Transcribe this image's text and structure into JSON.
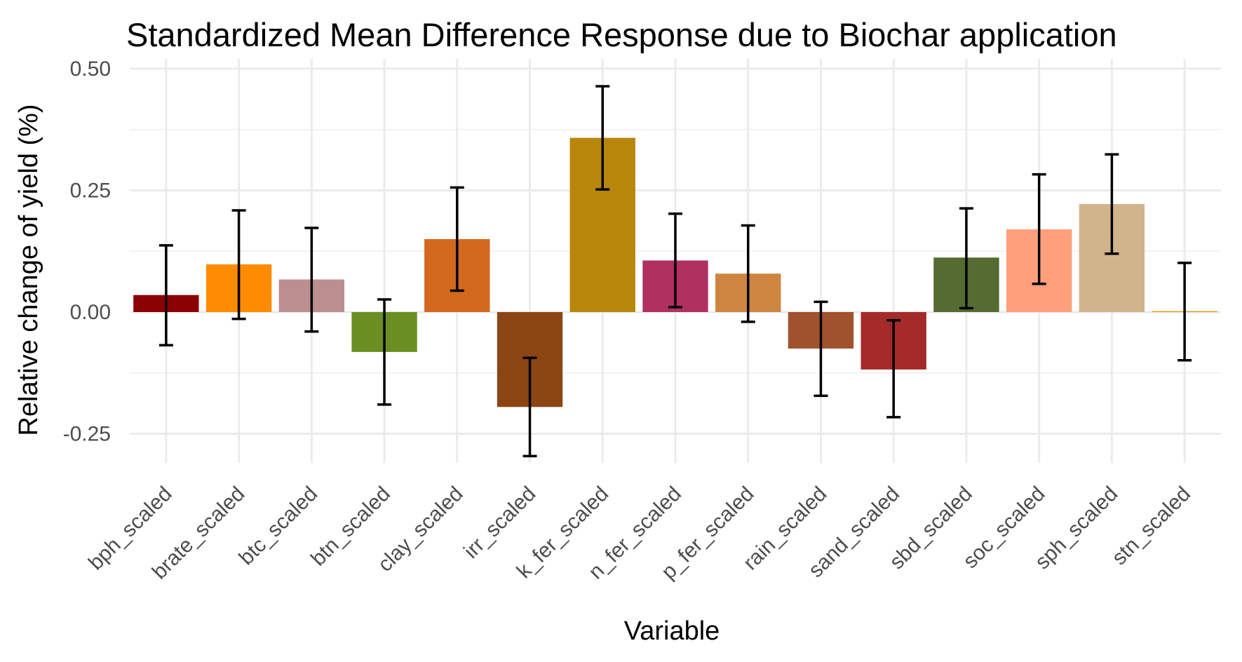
{
  "chart_data": {
    "type": "bar",
    "title": "Standardized Mean Difference Response due to Biochar application",
    "xlabel": "Variable",
    "ylabel": "Relative change of yield (%)",
    "ylim": [
      -0.31,
      0.52
    ],
    "yticks": [
      -0.25,
      0.0,
      0.25,
      0.5
    ],
    "ytick_labels": [
      "-0.25",
      "0.00",
      "0.25",
      "0.50"
    ],
    "grid": true,
    "legend": "none",
    "categories": [
      "bph_scaled",
      "brate_scaled",
      "btc_scaled",
      "btn_scaled",
      "clay_scaled",
      "irr_scaled",
      "k_fer_scaled",
      "n_fer_scaled",
      "p_fer_scaled",
      "rain_scaled",
      "sand_scaled",
      "sbd_scaled",
      "soc_scaled",
      "sph_scaled",
      "stn_scaled"
    ],
    "values": [
      0.035,
      0.098,
      0.067,
      -0.082,
      0.15,
      -0.195,
      0.358,
      0.106,
      0.079,
      -0.075,
      -0.118,
      0.112,
      0.17,
      0.222,
      0.002
    ],
    "error_lower": [
      -0.068,
      -0.014,
      -0.04,
      -0.19,
      0.044,
      -0.296,
      0.252,
      0.01,
      -0.02,
      -0.172,
      -0.216,
      0.008,
      0.058,
      0.12,
      -0.099
    ],
    "error_upper": [
      0.137,
      0.209,
      0.173,
      0.026,
      0.256,
      -0.094,
      0.464,
      0.202,
      0.178,
      0.021,
      -0.017,
      0.213,
      0.283,
      0.324,
      0.101
    ],
    "colors": [
      "#8b0000",
      "#ff8c00",
      "#bc8f8f",
      "#6b8e23",
      "#d2691e",
      "#8b4513",
      "#b8860b",
      "#b03060",
      "#cd853f",
      "#a0522d",
      "#a52a2a",
      "#556b2f",
      "#ffa07a",
      "#d2b48c",
      "#daa520"
    ]
  }
}
